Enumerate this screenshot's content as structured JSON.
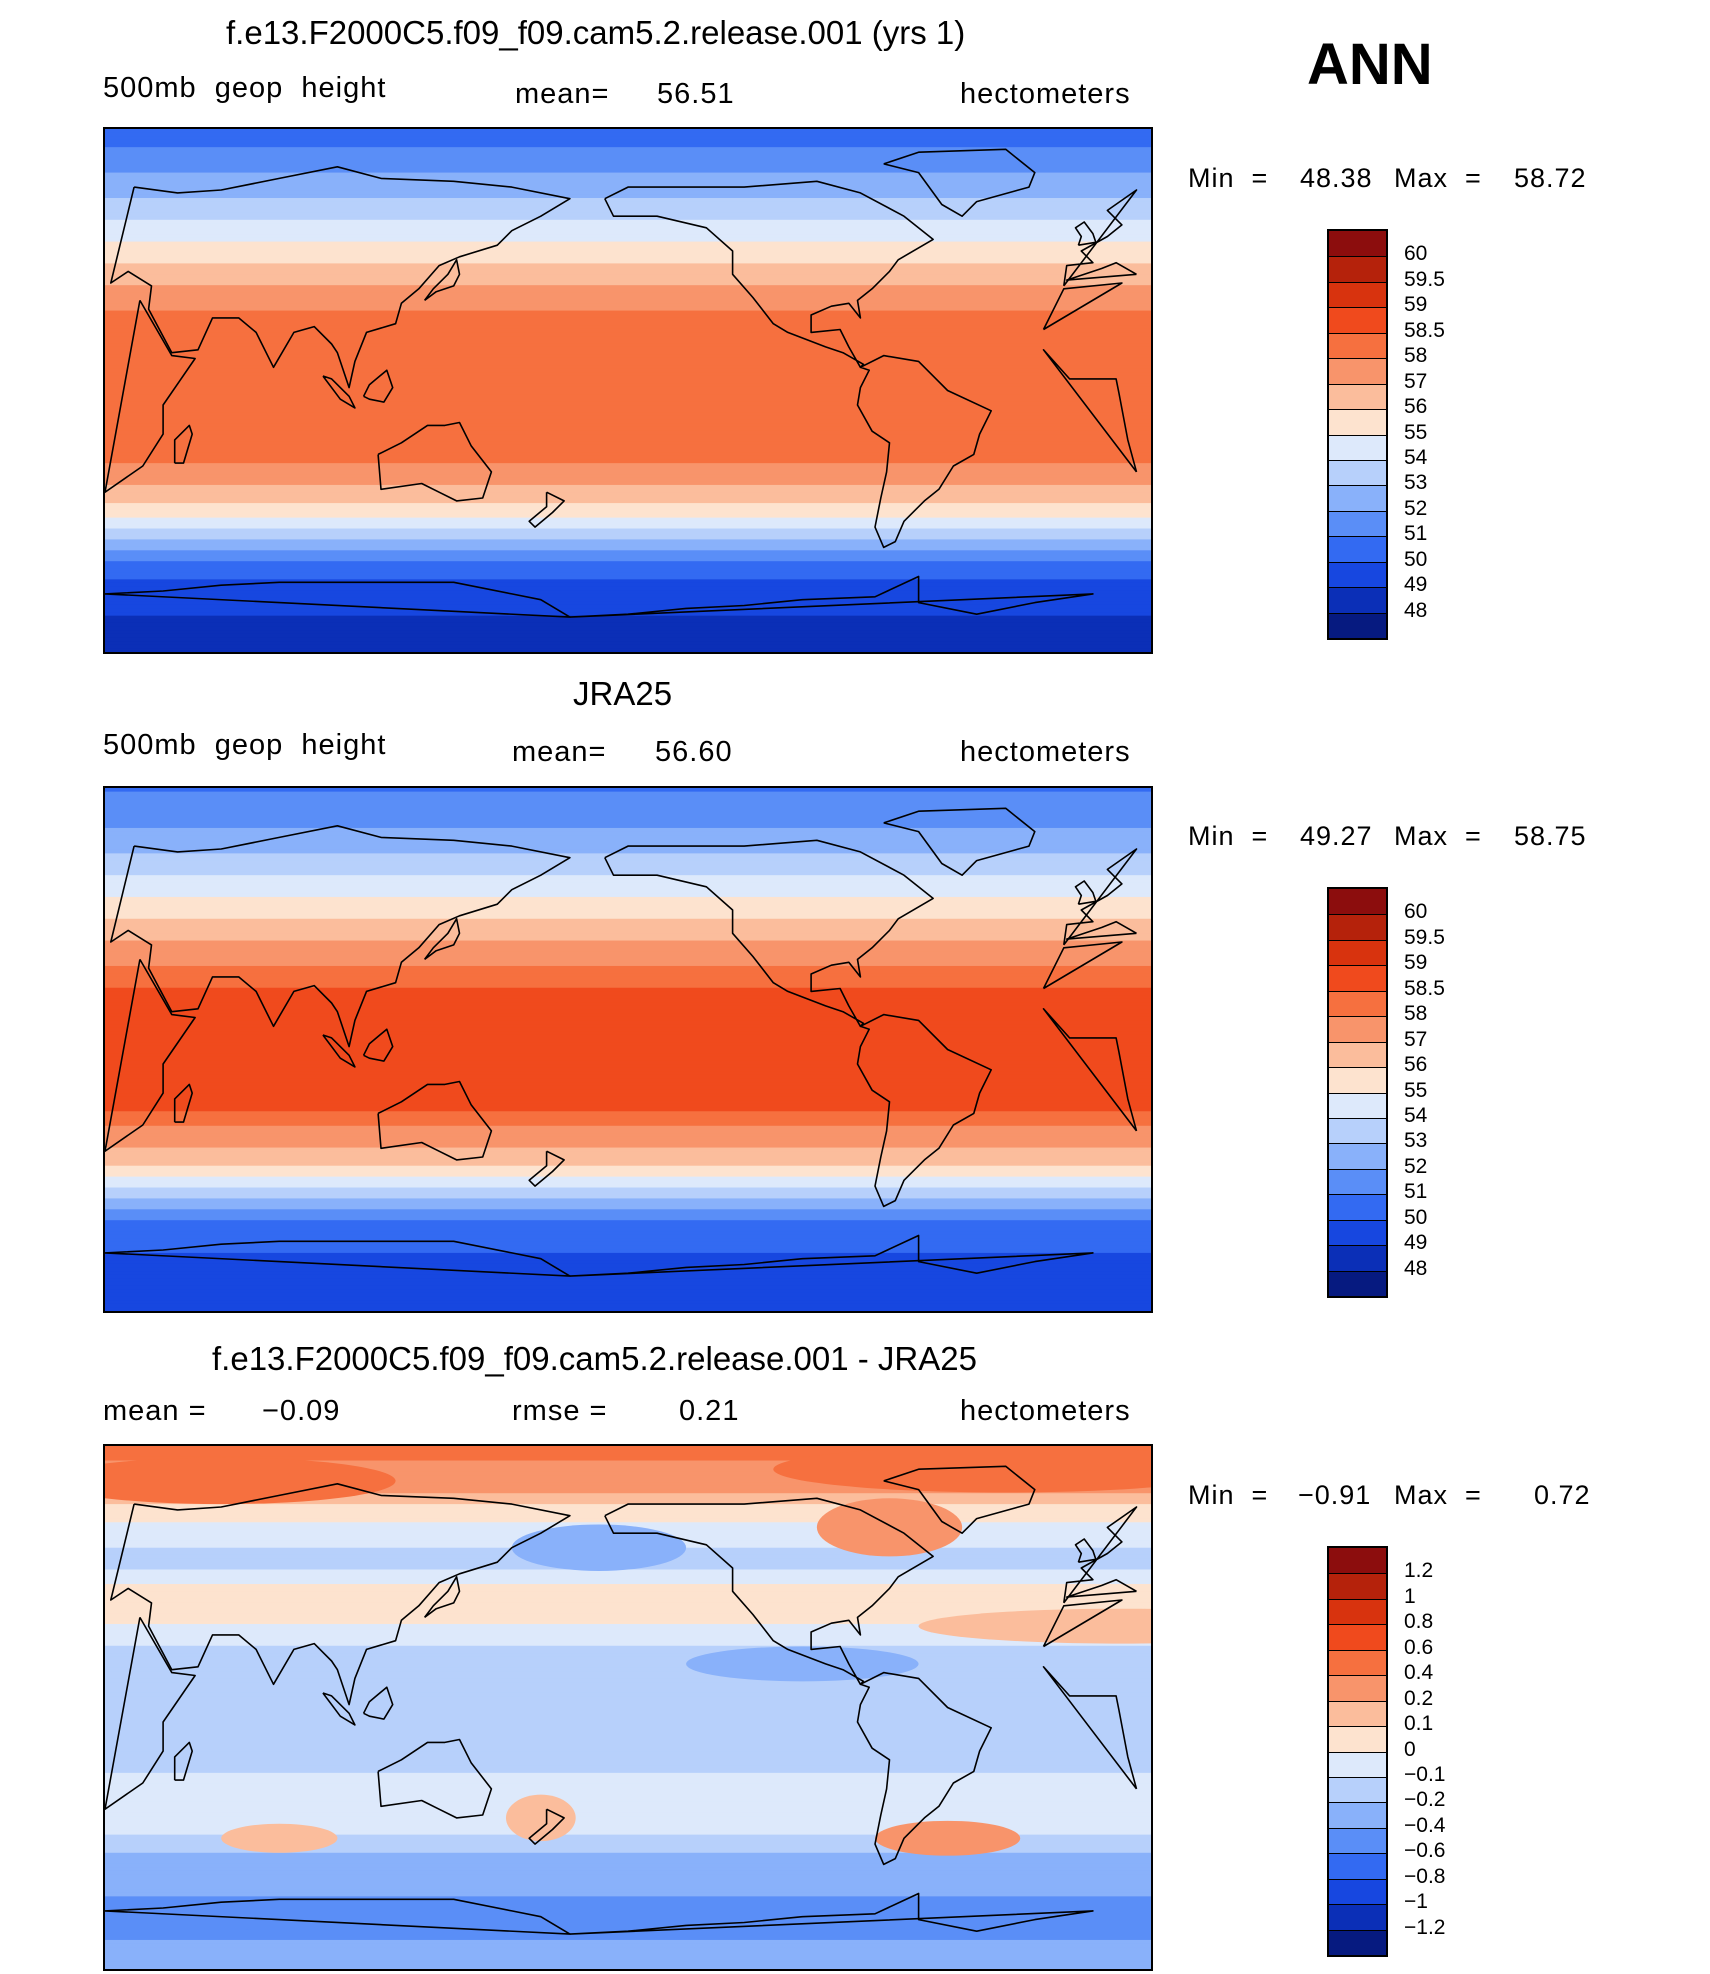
{
  "season": "ANN",
  "chart_data": [
    {
      "type": "heatmap",
      "title": "f.e13.F2000C5.f09_f09.cam5.2.release.001 (yrs 1)",
      "variable_label": "500mb  geop  height",
      "mean_label": "mean=",
      "mean_value": "56.51",
      "units": "hectometers",
      "min_label": "Min  =",
      "min_value": "48.38",
      "max_label": "Max  =",
      "max_value": "58.72",
      "min": 48.38,
      "max": 58.72,
      "colorbar_labels": [
        "60",
        "59.5",
        "59",
        "58.5",
        "58",
        "57",
        "56",
        "55",
        "54",
        "53",
        "52",
        "51",
        "50",
        "49",
        "48"
      ],
      "colorbar_colors": [
        "#8c0d0d",
        "#b5220b",
        "#d8330e",
        "#f04a1d",
        "#f6703f",
        "#f8946b",
        "#fbbd9c",
        "#fde3cf",
        "#dde9fb",
        "#b7d0fb",
        "#89b1fa",
        "#5a8ef7",
        "#336af2",
        "#1747e0",
        "#0b2fb7",
        "#061a80"
      ],
      "zonal_profile": [
        {
          "lat": 90,
          "value": 50.4
        },
        {
          "lat": 80,
          "value": 51.4
        },
        {
          "lat": 70,
          "value": 52.6
        },
        {
          "lat": 60,
          "value": 53.8
        },
        {
          "lat": 50,
          "value": 55.2
        },
        {
          "lat": 40,
          "value": 56.6
        },
        {
          "lat": 30,
          "value": 57.8
        },
        {
          "lat": 20,
          "value": 58.5
        },
        {
          "lat": 10,
          "value": 58.3
        },
        {
          "lat": 0,
          "value": 58.2
        },
        {
          "lat": -10,
          "value": 58.3
        },
        {
          "lat": -20,
          "value": 58.4
        },
        {
          "lat": -30,
          "value": 57.5
        },
        {
          "lat": -40,
          "value": 55.8
        },
        {
          "lat": -50,
          "value": 53.4
        },
        {
          "lat": -60,
          "value": 50.6
        },
        {
          "lat": -70,
          "value": 49.4
        },
        {
          "lat": -80,
          "value": 48.9
        },
        {
          "lat": -90,
          "value": 48.7
        }
      ]
    },
    {
      "type": "heatmap",
      "title": "JRA25",
      "variable_label": "500mb  geop  height",
      "mean_label": "mean=",
      "mean_value": "56.60",
      "units": "hectometers",
      "min_label": "Min  =",
      "min_value": "49.27",
      "max_label": "Max  =",
      "max_value": "58.75",
      "min": 49.27,
      "max": 58.75,
      "colorbar_labels": [
        "60",
        "59.5",
        "59",
        "58.5",
        "58",
        "57",
        "56",
        "55",
        "54",
        "53",
        "52",
        "51",
        "50",
        "49",
        "48"
      ],
      "colorbar_colors": [
        "#8c0d0d",
        "#b5220b",
        "#d8330e",
        "#f04a1d",
        "#f6703f",
        "#f8946b",
        "#fbbd9c",
        "#fde3cf",
        "#dde9fb",
        "#b7d0fb",
        "#89b1fa",
        "#5a8ef7",
        "#336af2",
        "#1747e0",
        "#0b2fb7",
        "#061a80"
      ],
      "zonal_profile": [
        {
          "lat": 90,
          "value": 50.9
        },
        {
          "lat": 80,
          "value": 51.6
        },
        {
          "lat": 70,
          "value": 52.7
        },
        {
          "lat": 60,
          "value": 54.0
        },
        {
          "lat": 50,
          "value": 55.4
        },
        {
          "lat": 40,
          "value": 56.7
        },
        {
          "lat": 30,
          "value": 57.9
        },
        {
          "lat": 20,
          "value": 58.6
        },
        {
          "lat": 10,
          "value": 58.7
        },
        {
          "lat": 0,
          "value": 58.7
        },
        {
          "lat": -10,
          "value": 58.7
        },
        {
          "lat": -20,
          "value": 58.6
        },
        {
          "lat": -30,
          "value": 57.6
        },
        {
          "lat": -40,
          "value": 55.9
        },
        {
          "lat": -50,
          "value": 53.5
        },
        {
          "lat": -60,
          "value": 50.8
        },
        {
          "lat": -70,
          "value": 50.0
        },
        {
          "lat": -80,
          "value": 49.8
        },
        {
          "lat": -90,
          "value": 49.6
        }
      ]
    },
    {
      "type": "heatmap",
      "title": "f.e13.F2000C5.f09_f09.cam5.2.release.001 - JRA25",
      "mean_label": "mean =",
      "mean_value": "−0.09",
      "rmse_label": "rmse =",
      "rmse_value": "0.21",
      "units": "hectometers",
      "min_label": "Min  =",
      "min_value": "−0.91",
      "max_label": "Max  =",
      "max_value": "0.72",
      "min": -0.91,
      "max": 0.72,
      "colorbar_labels": [
        "1.2",
        "1",
        "0.8",
        "0.6",
        "0.4",
        "0.2",
        "0.1",
        "0",
        "−0.1",
        "−0.2",
        "−0.4",
        "−0.6",
        "−0.8",
        "−1",
        "−1.2"
      ],
      "colorbar_colors": [
        "#8c0d0d",
        "#b5220b",
        "#d8330e",
        "#f04a1d",
        "#f6703f",
        "#f8946b",
        "#fbbd9c",
        "#fde3cf",
        "#dde9fb",
        "#b7d0fb",
        "#89b1fa",
        "#5a8ef7",
        "#336af2",
        "#1747e0",
        "#0b2fb7",
        "#061a80"
      ],
      "zonal_profile": [
        {
          "lat": 90,
          "value": 0.45
        },
        {
          "lat": 80,
          "value": 0.35
        },
        {
          "lat": 70,
          "value": 0.1
        },
        {
          "lat": 60,
          "value": -0.05
        },
        {
          "lat": 50,
          "value": -0.15
        },
        {
          "lat": 40,
          "value": 0.05
        },
        {
          "lat": 30,
          "value": 0.02
        },
        {
          "lat": 20,
          "value": -0.12
        },
        {
          "lat": 10,
          "value": -0.15
        },
        {
          "lat": 0,
          "value": -0.15
        },
        {
          "lat": -10,
          "value": -0.15
        },
        {
          "lat": -20,
          "value": -0.12
        },
        {
          "lat": -30,
          "value": -0.05
        },
        {
          "lat": -40,
          "value": -0.05
        },
        {
          "lat": -50,
          "value": -0.2
        },
        {
          "lat": -60,
          "value": -0.3
        },
        {
          "lat": -70,
          "value": -0.5
        },
        {
          "lat": -80,
          "value": -0.4
        },
        {
          "lat": -90,
          "value": -0.3
        }
      ]
    }
  ]
}
